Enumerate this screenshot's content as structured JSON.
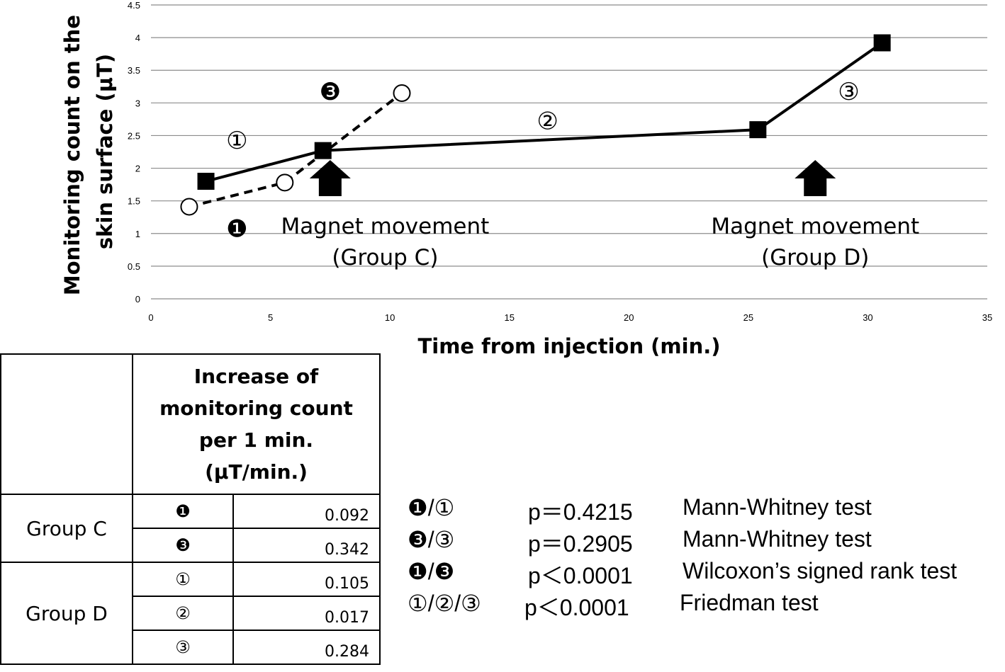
{
  "chart_data": {
    "type": "line",
    "xlabel": "Time from injection (min.)",
    "ylabel_lines": [
      "Monitoring count on the",
      "skin surface (μT)"
    ],
    "xlim": [
      0,
      35
    ],
    "ylim": [
      0,
      4.5
    ],
    "x_ticks": [
      0,
      5,
      10,
      15,
      20,
      25,
      30,
      35
    ],
    "y_ticks": [
      0,
      0.5,
      1,
      1.5,
      2,
      2.5,
      3,
      3.5,
      4,
      4.5
    ],
    "grid": "horizontal",
    "series": [
      {
        "marker": "filled-square",
        "line": "solid",
        "x": [
          2.3,
          7.2,
          25.4,
          30.6
        ],
        "y": [
          1.8,
          2.27,
          2.59,
          3.92
        ]
      },
      {
        "marker": "open-circle",
        "line": "dashed",
        "x": [
          1.6,
          5.6,
          10.5
        ],
        "y": [
          1.41,
          1.78,
          3.15
        ]
      }
    ],
    "segment_labels": [
      {
        "text": "①",
        "x": 3.6,
        "y": 2.4
      },
      {
        "text": "②",
        "x": 16.6,
        "y": 2.7
      },
      {
        "text": "③",
        "x": 29.2,
        "y": 3.15
      },
      {
        "text": "❶",
        "x": 3.6,
        "y": 1.05
      },
      {
        "text": "❸",
        "x": 7.5,
        "y": 3.15
      }
    ],
    "annotations": [
      {
        "line1": "Magnet movement",
        "line2": "(Group C)",
        "arrow_x": 7.5,
        "label_x": 9.8
      },
      {
        "line1": "Magnet movement",
        "line2": "(Group D)",
        "arrow_x": 27.8,
        "label_x": 27.8
      }
    ]
  },
  "table": {
    "header": [
      "Increase of",
      "monitoring count",
      "per 1 min.",
      "(μT/min.)"
    ],
    "groups": [
      {
        "name": "Group C",
        "rows": [
          {
            "segment": "❶",
            "value": "0.092"
          },
          {
            "segment": "❸",
            "value": "0.342"
          }
        ]
      },
      {
        "name": "Group D",
        "rows": [
          {
            "segment": "①",
            "value": "0.105"
          },
          {
            "segment": "②",
            "value": "0.017"
          },
          {
            "segment": "③",
            "value": "0.284"
          }
        ]
      }
    ]
  },
  "stats": [
    {
      "comparison": "❶/①",
      "p": "p＝0.4215",
      "test": "Mann-Whitney   test"
    },
    {
      "comparison": "❸/③",
      "p": "p＝0.2905",
      "test": "Mann-Whitney   test"
    },
    {
      "comparison": "❶/❸",
      "p": "p＜0.0001",
      "test": "Wilcoxon’s signed rank test"
    },
    {
      "comparison": "①/②/③",
      "p": "p＜0.0001",
      "test": "Friedman test"
    }
  ]
}
